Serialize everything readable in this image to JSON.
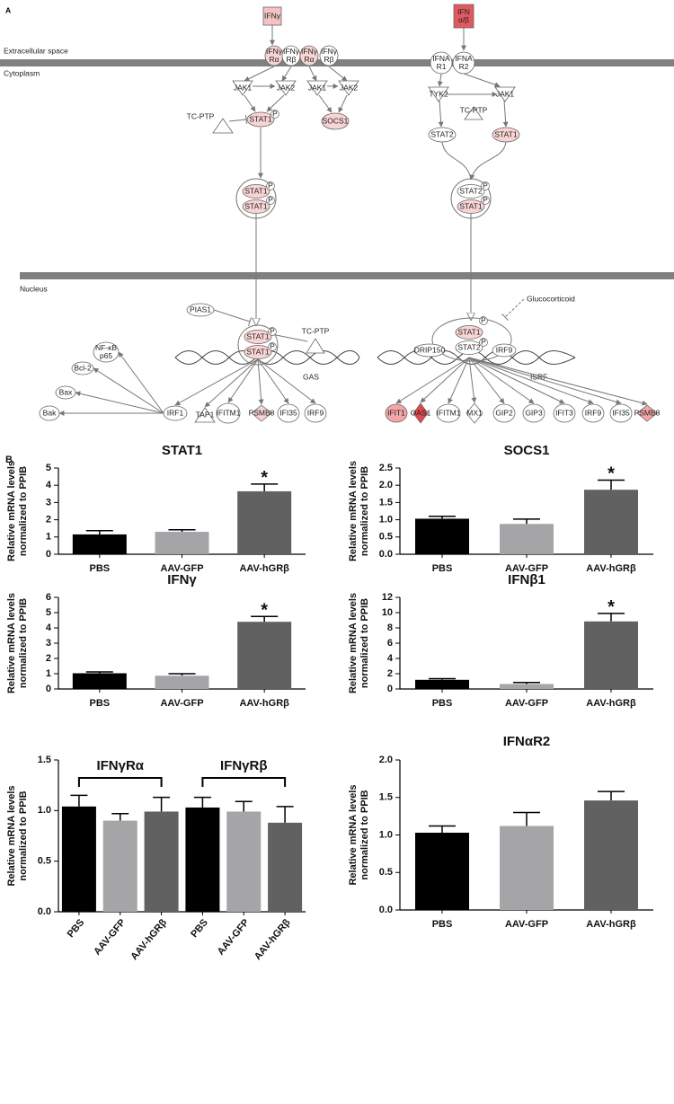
{
  "diagram": {
    "panel_label": "A",
    "compartments": [
      "Extracellular space",
      "Cytoplasm",
      "Nucleus"
    ],
    "phosphate": "P",
    "nodes": [
      "IFNγ",
      [
        "IFN",
        "α/β"
      ],
      [
        "IFNγ",
        "Rα"
      ],
      [
        "IFNγ",
        "Rβ"
      ],
      [
        "IFNγ",
        "Rα"
      ],
      [
        "IFNγ",
        "Rβ"
      ],
      [
        "IFNA",
        "R1"
      ],
      [
        "IFNA",
        "R2"
      ],
      "JAK1",
      "JAK2",
      "JAK1",
      "JAK2",
      "TC-PTP",
      "STAT1",
      "SOCS1",
      "TYK2",
      "JAK1",
      "TC-PTP",
      "STAT2",
      "STAT1",
      "STAT1",
      "STAT1",
      "STAT2",
      "STAT1",
      "PIAS1",
      "TC-PTP",
      "STAT1",
      "STAT1",
      "STAT1",
      "STAT2",
      "DRIP150",
      "IRF9",
      [
        "NF-κB",
        "p65"
      ],
      "Bcl-2",
      "Bax",
      "Bak",
      "IRF1",
      "TAP1",
      "IFITM1",
      "PSMB8",
      "IFI35",
      "IRF9",
      "IFIT1",
      "OAS1",
      "IFITM1",
      "MX1",
      "GIP2",
      "GIP3",
      "IFIT3",
      "IRF9",
      "IFI35",
      "PSMB8"
    ],
    "labels": [
      "GAS",
      "ISRF",
      "Glucocorticoid"
    ]
  },
  "panel_b_label": "B",
  "chart_data": [
    {
      "type": "bar",
      "title": "STAT1",
      "ylabel": [
        "Relative mRNA levels",
        "normalized to PPIB"
      ],
      "categories": [
        "PBS",
        "AAV-GFP",
        "AAV-hGRβ"
      ],
      "values": [
        1.15,
        1.3,
        3.65
      ],
      "errors": [
        0.22,
        0.12,
        0.42
      ],
      "significance": [
        null,
        null,
        "*"
      ],
      "colors": [
        "#000000",
        "#a5a5a7",
        "#616161"
      ],
      "ylim": [
        0,
        5
      ],
      "yticks": [
        0,
        1,
        2,
        3,
        4,
        5
      ]
    },
    {
      "type": "bar",
      "title": "SOCS1",
      "ylabel": [
        "Relative mRNA levels",
        "normalized to PPIB"
      ],
      "categories": [
        "PBS",
        "AAV-GFP",
        "AAV-hGRβ"
      ],
      "values": [
        1.03,
        0.88,
        1.87
      ],
      "errors": [
        0.07,
        0.14,
        0.28
      ],
      "significance": [
        null,
        null,
        "*"
      ],
      "colors": [
        "#000000",
        "#a5a5a7",
        "#616161"
      ],
      "ylim": [
        0,
        2.5
      ],
      "yticks": [
        {
          "value": 0,
          "label": "0.0"
        },
        0.5,
        {
          "value": 1,
          "label": "1.0"
        },
        1.5,
        {
          "value": 2,
          "label": "2.0"
        },
        2.5
      ]
    },
    {
      "type": "bar",
      "title": "IFNγ",
      "ylabel": [
        "Relative mRNA levels",
        "normalized to PPIB"
      ],
      "categories": [
        "PBS",
        "AAV-GFP",
        "AAV-hGRβ"
      ],
      "values": [
        1.03,
        0.87,
        4.4
      ],
      "errors": [
        0.09,
        0.13,
        0.35
      ],
      "significance": [
        null,
        null,
        "*"
      ],
      "colors": [
        "#000000",
        "#a5a5a7",
        "#616161"
      ],
      "ylim": [
        0,
        6
      ],
      "yticks": [
        0,
        1,
        2,
        3,
        4,
        5,
        6
      ]
    },
    {
      "type": "bar",
      "title": "IFNβ1",
      "ylabel": [
        "Relative mRNA levels",
        "normalized to PPIB"
      ],
      "categories": [
        "PBS",
        "AAV-GFP",
        "AAV-hGRβ"
      ],
      "values": [
        1.2,
        0.65,
        8.85
      ],
      "errors": [
        0.15,
        0.2,
        1.05
      ],
      "significance": [
        null,
        null,
        "*"
      ],
      "colors": [
        "#000000",
        "#a5a5a7",
        "#616161"
      ],
      "ylim": [
        0,
        12
      ],
      "yticks": [
        0,
        2,
        4,
        6,
        8,
        10,
        12
      ]
    },
    {
      "type": "bar",
      "ylabel": [
        "Relative mRNA levels",
        "normalized to PPIB"
      ],
      "groups": [
        "IFNγRα",
        "IFNγRβ"
      ],
      "categories": [
        "PBS",
        "AAV-GFP",
        "AAV-hGRβ",
        "PBS",
        "AAV-GFP",
        "AAV-hGRβ"
      ],
      "values": [
        1.04,
        0.9,
        0.99,
        1.03,
        0.99,
        0.88
      ],
      "errors": [
        0.11,
        0.07,
        0.14,
        0.1,
        0.1,
        0.16
      ],
      "colors": [
        "#000000",
        "#a5a5a7",
        "#616161",
        "#000000",
        "#a5a5a7",
        "#616161"
      ],
      "ylim": [
        0,
        1.5
      ],
      "yticks": [
        {
          "value": 0,
          "label": "0.0"
        },
        0.5,
        {
          "value": 1,
          "label": "1.0"
        },
        1.5
      ]
    },
    {
      "type": "bar",
      "title": "IFNαR2",
      "ylabel": [
        "Relative mRNA levels",
        "normalized to PPIB"
      ],
      "categories": [
        "PBS",
        "AAV-GFP",
        "AAV-hGRβ"
      ],
      "values": [
        1.03,
        1.12,
        1.46
      ],
      "errors": [
        0.09,
        0.18,
        0.12
      ],
      "colors": [
        "#000000",
        "#a5a5a7",
        "#616161"
      ],
      "ylim": [
        0,
        2
      ],
      "yticks": [
        {
          "value": 0,
          "label": "0.0"
        },
        0.5,
        {
          "value": 1,
          "label": "1.0"
        },
        1.5,
        {
          "value": 2,
          "label": "2.0"
        }
      ]
    }
  ]
}
